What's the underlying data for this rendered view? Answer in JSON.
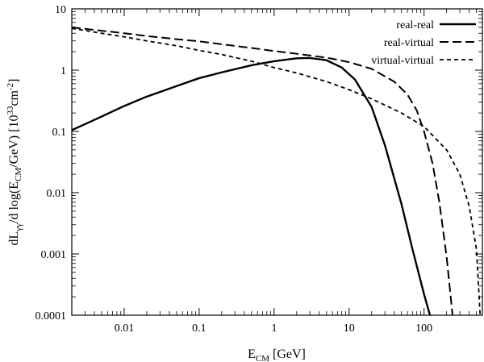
{
  "chart_data": {
    "type": "line",
    "xscale": "log",
    "yscale": "log",
    "xlim": [
      0.002,
      600
    ],
    "ylim": [
      0.0001,
      10
    ],
    "grid": false,
    "legend_position": "top-right",
    "x_ticks": [
      {
        "value": 0.01,
        "label": "0.01"
      },
      {
        "value": 0.1,
        "label": "0.1"
      },
      {
        "value": 1,
        "label": "1"
      },
      {
        "value": 10,
        "label": "10"
      },
      {
        "value": 100,
        "label": "100"
      }
    ],
    "y_ticks": [
      {
        "value": 0.0001,
        "label": "0.0001"
      },
      {
        "value": 0.001,
        "label": "0.001"
      },
      {
        "value": 0.01,
        "label": "0.01"
      },
      {
        "value": 0.1,
        "label": "0.1"
      },
      {
        "value": 1,
        "label": "1"
      },
      {
        "value": 10,
        "label": "10"
      }
    ],
    "xlabel": {
      "base": "E",
      "sub": "CM",
      "rest": " [GeV]"
    },
    "ylabel": {
      "p1": "dL",
      "p1_sub": "γγ",
      "p2": "/d log(E",
      "p2_sub": "CM",
      "p3": "/GeV) [10",
      "p3_sup": "33",
      "p4": "cm",
      "p4_sup": "-2",
      "p5": "]"
    },
    "series": [
      {
        "name": "real-real",
        "style": "solid",
        "x": [
          0.002,
          0.005,
          0.01,
          0.02,
          0.05,
          0.1,
          0.2,
          0.5,
          1,
          2,
          3,
          5,
          8,
          12,
          20,
          30,
          50,
          70,
          100,
          120
        ],
        "y": [
          0.105,
          0.175,
          0.26,
          0.37,
          0.55,
          0.74,
          0.92,
          1.2,
          1.4,
          1.56,
          1.58,
          1.45,
          1.1,
          0.7,
          0.25,
          0.06,
          0.0065,
          0.0012,
          0.00022,
          0.0001
        ]
      },
      {
        "name": "real-virtual",
        "style": "dashed",
        "x": [
          0.002,
          0.005,
          0.01,
          0.02,
          0.05,
          0.1,
          0.2,
          0.5,
          1,
          2,
          5,
          10,
          20,
          40,
          60,
          80,
          100,
          130,
          160,
          200,
          240
        ],
        "y": [
          5.0,
          4.4,
          4.0,
          3.6,
          3.2,
          2.95,
          2.65,
          2.3,
          2.05,
          1.85,
          1.6,
          1.35,
          1.05,
          0.65,
          0.4,
          0.22,
          0.1,
          0.03,
          0.007,
          0.0009,
          0.0001
        ]
      },
      {
        "name": "virtual-virtual",
        "style": "dotted",
        "x": [
          0.002,
          0.005,
          0.01,
          0.02,
          0.05,
          0.1,
          0.2,
          0.5,
          1,
          2,
          5,
          10,
          20,
          50,
          100,
          200,
          300,
          400,
          500,
          560
        ],
        "y": [
          4.8,
          4.0,
          3.5,
          3.0,
          2.5,
          2.1,
          1.8,
          1.4,
          1.1,
          0.9,
          0.65,
          0.48,
          0.34,
          0.2,
          0.12,
          0.05,
          0.02,
          0.006,
          0.0012,
          0.0001
        ]
      }
    ]
  }
}
